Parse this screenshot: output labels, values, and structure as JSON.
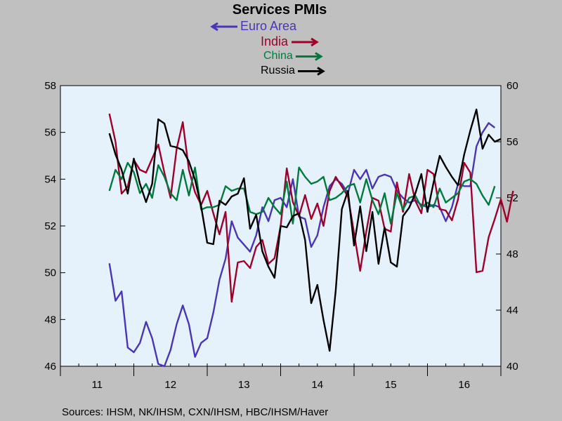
{
  "chart_data": {
    "type": "line",
    "title": "Services PMIs",
    "legend": [
      {
        "name": "Euro Area",
        "color": "#4b35b7",
        "arrow": "left"
      },
      {
        "name": "India",
        "color": "#a0002a",
        "arrow": "right"
      },
      {
        "name": "China",
        "color": "#007a3d",
        "arrow": "right"
      },
      {
        "name": "Russia",
        "color": "#000000",
        "arrow": "right"
      }
    ],
    "source": "Sources:  IHSM, NK/IHSM, CXN/IHSM, HBC/IHSM/Haver",
    "x_tick_labels": [
      "11",
      "12",
      "13",
      "14",
      "15",
      "16"
    ],
    "x_range": [
      2011.0,
      2017.0
    ],
    "left_axis": {
      "range": [
        46,
        58
      ],
      "ticks": [
        "46",
        "48",
        "50",
        "52",
        "54",
        "56",
        "58"
      ]
    },
    "right_axis": {
      "range": [
        40,
        60
      ],
      "ticks": [
        "40",
        "44",
        "48",
        "52",
        "56",
        "60"
      ]
    },
    "grid": false,
    "series": [
      {
        "name": "Euro Area",
        "axis": "left",
        "color": "#4b35b7",
        "start": 2011.6667,
        "values": [
          50.4,
          48.8,
          49.2,
          46.8,
          46.6,
          47.0,
          47.9,
          47.2,
          46.1,
          46.0,
          46.7,
          47.8,
          48.6,
          47.8,
          46.4,
          47.0,
          47.2,
          48.3,
          49.7,
          50.6,
          52.2,
          51.5,
          51.2,
          50.9,
          51.6,
          52.8,
          52.2,
          53.1,
          53.2,
          52.8,
          54.0,
          52.4,
          52.3,
          51.1,
          51.6,
          52.8,
          53.7,
          54.0,
          53.8,
          53.4,
          54.4,
          54.0,
          54.4,
          53.6,
          54.1,
          54.2,
          54.1,
          53.5,
          53.2,
          53.0,
          53.1,
          52.9,
          52.8,
          52.9,
          52.8,
          52.2,
          52.8,
          53.8,
          53.7,
          53.7,
          55.4,
          56.0,
          56.4,
          56.2
        ]
      },
      {
        "name": "India",
        "axis": "right",
        "color": "#a0002a",
        "start": 2011.6667,
        "values": [
          58.0,
          56.0,
          52.3,
          52.8,
          54.7,
          54.0,
          53.8,
          54.8,
          55.8,
          53.8,
          52.0,
          55.5,
          57.4,
          54.0,
          52.4,
          51.5,
          52.5,
          50.9,
          49.4,
          51.0,
          44.6,
          47.4,
          47.5,
          47.0,
          48.5,
          49.0,
          47.3,
          47.7,
          50.0,
          54.1,
          51.7,
          50.7,
          52.2,
          50.5,
          51.6,
          50.0,
          52.5,
          53.5,
          52.8,
          52.1,
          49.5,
          46.8,
          49.6,
          52.0,
          51.8,
          49.8,
          49.6,
          53.1,
          51.0,
          53.7,
          51.8,
          50.9,
          54.0,
          53.7,
          51.2,
          51.1,
          50.4,
          51.9,
          54.5,
          53.8,
          46.7,
          46.8,
          49.2,
          50.5,
          51.9,
          50.3,
          52.5
        ]
      },
      {
        "name": "China",
        "axis": "left",
        "color": "#007a3d",
        "start": 2011.6667,
        "values": [
          53.5,
          54.4,
          54.0,
          54.7,
          54.3,
          53.4,
          53.8,
          53.2,
          54.6,
          54.1,
          53.4,
          53.1,
          54.4,
          53.3,
          54.5,
          52.7,
          52.8,
          52.8,
          52.9,
          53.7,
          53.5,
          53.6,
          53.6,
          52.6,
          52.5,
          52.6,
          53.2,
          52.8,
          52.5,
          53.9,
          52.1,
          54.5,
          54.1,
          53.8,
          53.9,
          54.1,
          53.1,
          53.2,
          53.4,
          53.7,
          53.8,
          53.0,
          54.0,
          53.1,
          52.5,
          53.4,
          52.1,
          53.4,
          52.7,
          53.2,
          53.3,
          52.8,
          53.0,
          52.8,
          53.6,
          53.0,
          53.2,
          53.4,
          53.9,
          54.0,
          53.8,
          53.3,
          52.9,
          53.7
        ]
      },
      {
        "name": "Russia",
        "axis": "right",
        "color": "#000000",
        "start": 2011.6667,
        "values": [
          56.6,
          55.1,
          54.0,
          52.3,
          54.8,
          53.0,
          51.7,
          53.0,
          57.6,
          57.3,
          55.7,
          55.6,
          55.4,
          54.6,
          53.3,
          51.4,
          48.8,
          48.7,
          51.8,
          51.5,
          52.1,
          52.3,
          53.4,
          49.8,
          50.8,
          48.2,
          47.1,
          46.3,
          50.0,
          49.9,
          50.7,
          50.9,
          49.0,
          44.5,
          45.8,
          43.3,
          41.1,
          45.4,
          51.2,
          52.5,
          48.6,
          51.4,
          48.2,
          51.0,
          47.3,
          49.9,
          47.4,
          47.1,
          50.7,
          51.3,
          52.3,
          53.7,
          51.0,
          53.1,
          55.0,
          54.2,
          53.5,
          52.9,
          55.1,
          56.8,
          58.3,
          55.5,
          56.5,
          56.0,
          56.2
        ]
      }
    ]
  }
}
